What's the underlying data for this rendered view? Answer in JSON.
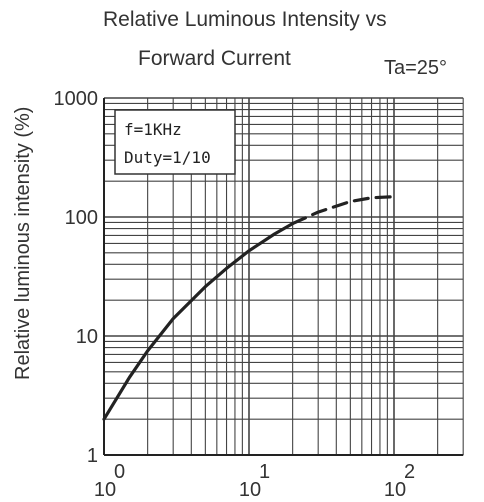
{
  "chart_data": {
    "type": "line",
    "title": "Relative Luminous Intensity vs",
    "subtitle": "Forward Current",
    "condition": "Ta=25°",
    "ylabel": "Relative luminous intensity  (%)",
    "xlabel": "",
    "x_scale": "log",
    "y_scale": "log",
    "xlim": [
      1,
      300
    ],
    "ylim": [
      1,
      1000
    ],
    "grid": true,
    "x_ticks": [
      {
        "value": 1,
        "base": "10",
        "exp": "0"
      },
      {
        "value": 10,
        "base": "10",
        "exp": "1"
      },
      {
        "value": 100,
        "base": "10",
        "exp": "2"
      }
    ],
    "y_ticks": [
      {
        "value": 1,
        "label": "1"
      },
      {
        "value": 10,
        "label": "10"
      },
      {
        "value": 100,
        "label": "100"
      },
      {
        "value": 1000,
        "label": "1000"
      }
    ],
    "annotation": [
      "f=1KHz",
      "Duty=1/10"
    ],
    "series": [
      {
        "style": "solid",
        "x": [
          1.0,
          1.5,
          2.0,
          3.0,
          5.0,
          7.0,
          10.0,
          15.0,
          20.0
        ],
        "y": [
          2.0,
          4.5,
          7.5,
          14,
          26,
          37,
          52,
          72,
          88
        ]
      },
      {
        "style": "dashed",
        "x": [
          20.0,
          30.0,
          50.0,
          70.0,
          100.0
        ],
        "y": [
          88,
          110,
          135,
          145,
          148
        ]
      }
    ]
  }
}
